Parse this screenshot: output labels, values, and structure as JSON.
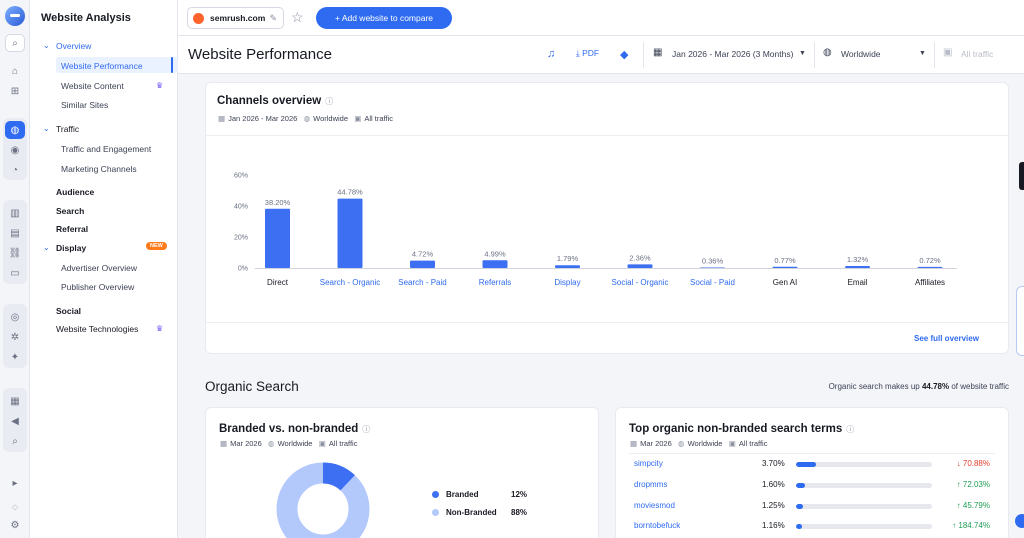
{
  "app": {
    "title": "Website Analysis"
  },
  "sidebar": {
    "items": [
      {
        "label": "Overview"
      },
      {
        "label": "Website Performance"
      },
      {
        "label": "Website Content"
      },
      {
        "label": "Similar Sites"
      },
      {
        "label": "Traffic"
      },
      {
        "label": "Traffic and Engagement"
      },
      {
        "label": "Marketing Channels"
      },
      {
        "label": "Audience"
      },
      {
        "label": "Search"
      },
      {
        "label": "Referral"
      },
      {
        "label": "Display"
      },
      {
        "label": "Advertiser Overview"
      },
      {
        "label": "Publisher Overview"
      },
      {
        "label": "Social"
      },
      {
        "label": "Website Technologies"
      }
    ],
    "new_badge": "NEW"
  },
  "topbar": {
    "domain": "semrush.com",
    "add_button": "+ Add website to compare"
  },
  "header": {
    "title": "Website Performance",
    "pdf_label": "PDF",
    "date_range": "Jan 2026 - Mar 2026 (3 Months)",
    "region": "Worldwide",
    "traffic": "All traffic"
  },
  "channels": {
    "title": "Channels overview",
    "date": "Jan 2026 - Mar 2026",
    "region": "Worldwide",
    "traffic": "All traffic",
    "see_full": "See full overview"
  },
  "chart_data": {
    "type": "bar",
    "categories": [
      "Direct",
      "Search - Organic",
      "Search - Paid",
      "Referrals",
      "Display",
      "Social - Organic",
      "Social - Paid",
      "Gen AI",
      "Email",
      "Affiliates"
    ],
    "values": [
      38.2,
      44.78,
      4.72,
      4.99,
      1.79,
      2.36,
      0.36,
      0.77,
      1.32,
      0.72
    ],
    "value_labels": [
      "38.20%",
      "44.78%",
      "4.72%",
      "4.99%",
      "1.79%",
      "2.36%",
      "0.36%",
      "0.77%",
      "1.32%",
      "0.72%"
    ],
    "linked_categories": [
      false,
      true,
      true,
      true,
      true,
      true,
      true,
      false,
      false,
      false
    ],
    "yticks": [
      "0%",
      "20%",
      "40%",
      "60%"
    ],
    "ylim": [
      0,
      60
    ],
    "bar_color": "#3d6ff2",
    "grid": false
  },
  "organic": {
    "title": "Organic Search",
    "note_prefix": "Organic search makes up",
    "note_value": "44.78%",
    "note_suffix": "of website traffic"
  },
  "branded": {
    "title": "Branded vs. non-branded",
    "date": "Mar 2026",
    "region": "Worldwide",
    "traffic": "All traffic",
    "legend": [
      {
        "label": "Branded",
        "value": "12%",
        "share": 12,
        "color": "#3d6ff2"
      },
      {
        "label": "Non-Branded",
        "value": "88%",
        "share": 88,
        "color": "#b3c8fb"
      }
    ]
  },
  "terms": {
    "title": "Top organic non-branded search terms",
    "date": "Mar 2026",
    "region": "Worldwide",
    "traffic": "All traffic",
    "rows": [
      {
        "term": "simpcity",
        "share": "3.70%",
        "fill": 0.037,
        "change": "↓ 70.88%",
        "dir": "down"
      },
      {
        "term": "dropmms",
        "share": "1.60%",
        "fill": 0.016,
        "change": "↑ 72.03%",
        "dir": "up"
      },
      {
        "term": "moviesmod",
        "share": "1.25%",
        "fill": 0.0125,
        "change": "↑ 45.79%",
        "dir": "up"
      },
      {
        "term": "borntobefuck",
        "share": "1.16%",
        "fill": 0.0116,
        "change": "↑ 184.74%",
        "dir": "up"
      }
    ]
  },
  "colors": {
    "accent": "#2f6bf0",
    "up": "#1f9d55",
    "down": "#e0402f",
    "new_badge": "#ff7a1a"
  }
}
